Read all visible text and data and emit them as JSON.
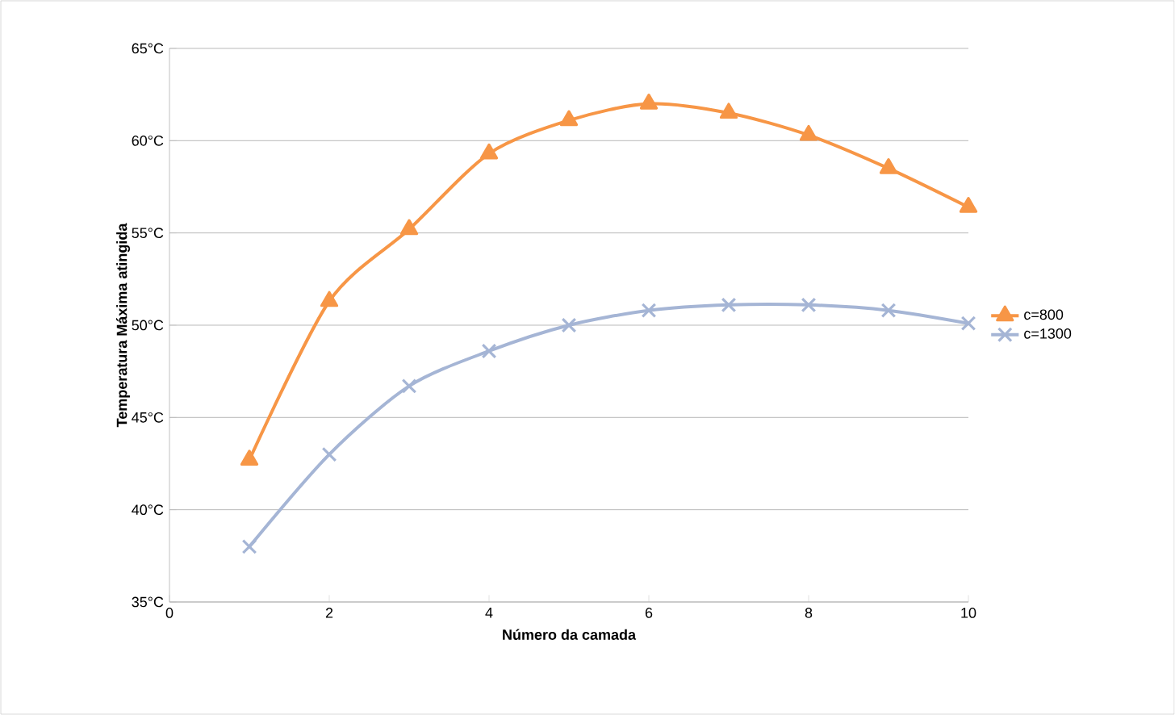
{
  "chart_data": {
    "type": "line",
    "xlabel": "Número da camada",
    "ylabel": "Temperatura Máxima atingida",
    "x": [
      1,
      2,
      3,
      4,
      5,
      6,
      7,
      8,
      9,
      10
    ],
    "series": [
      {
        "name": "c=800",
        "color": "#f79646",
        "marker": "triangle",
        "values": [
          42.7,
          51.3,
          55.2,
          59.3,
          61.1,
          62.0,
          61.5,
          60.3,
          58.5,
          56.4
        ]
      },
      {
        "name": "c=1300",
        "color": "#a5b5d5",
        "marker": "cross",
        "values": [
          38.0,
          43.0,
          46.7,
          48.6,
          50.0,
          50.8,
          51.1,
          51.1,
          50.8,
          50.1
        ]
      }
    ],
    "xlim": [
      0,
      10
    ],
    "xticks": [
      0,
      2,
      4,
      6,
      8,
      10
    ],
    "ylim": [
      35,
      65
    ],
    "yticks": [
      {
        "value": 35,
        "label": "35°C"
      },
      {
        "value": 40,
        "label": "40°C"
      },
      {
        "value": 45,
        "label": "45°C"
      },
      {
        "value": 50,
        "label": "50°C"
      },
      {
        "value": 55,
        "label": "55°C"
      },
      {
        "value": 60,
        "label": "60°C"
      },
      {
        "value": 65,
        "label": "65°C"
      }
    ],
    "grid": "y",
    "legend": "right"
  }
}
